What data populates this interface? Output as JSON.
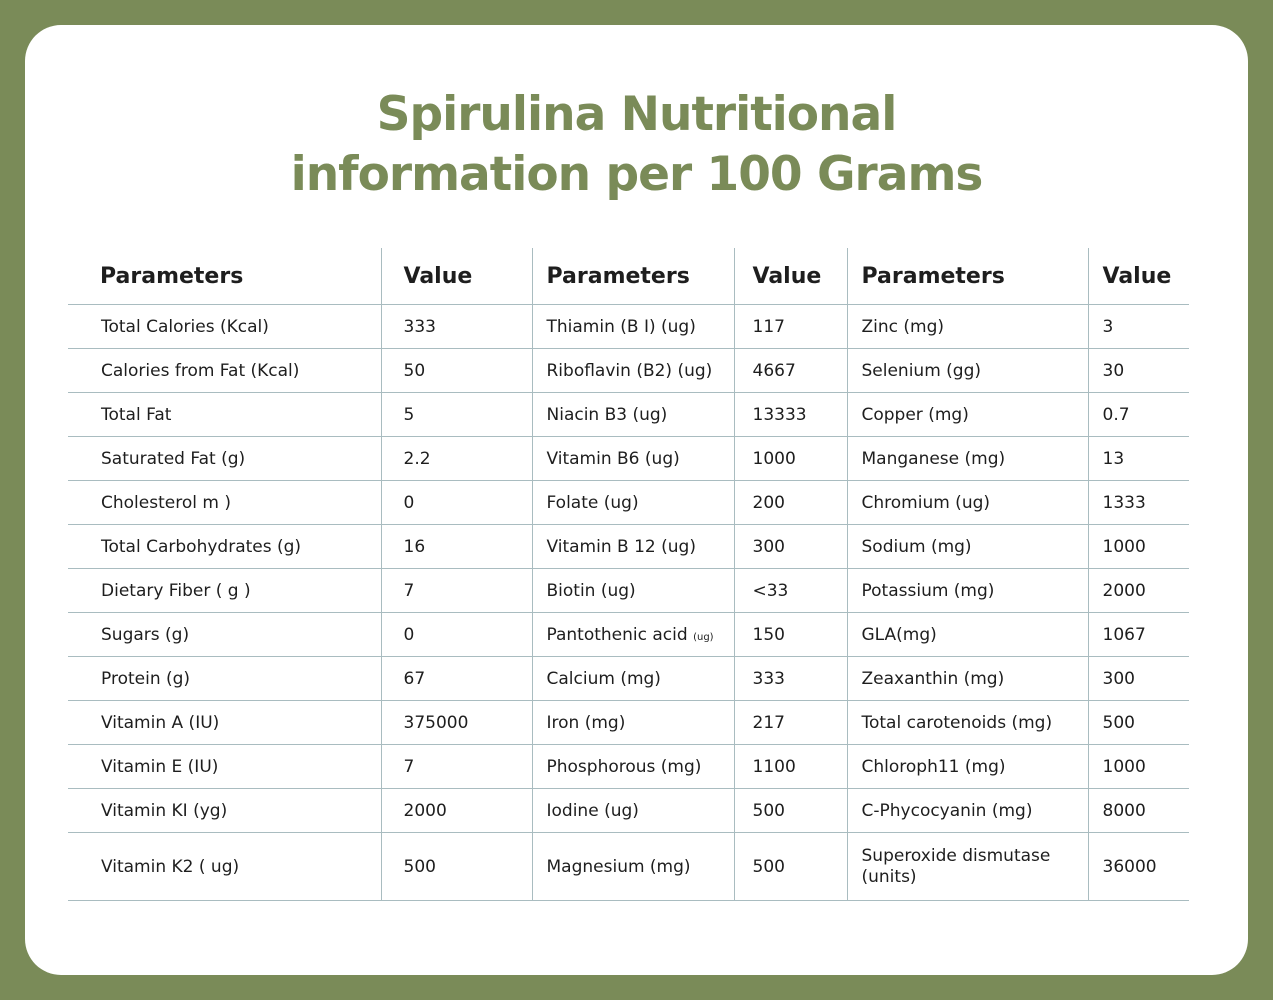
{
  "title": {
    "line1": "Spirulina Nutritional",
    "line2": "information per 100 Grams"
  },
  "headers": [
    "Parameters",
    "Value",
    "Parameters",
    "Value",
    "Parameters",
    "Value"
  ],
  "rows": [
    {
      "p1": "Total Calories (Kcal)",
      "v1": "333",
      "p2": "Thiamin (B I) (ug)",
      "v2": "117",
      "p3": "Zinc (mg)",
      "v3": "3"
    },
    {
      "p1": "Calories from Fat (Kcal)",
      "v1": "50",
      "p2": "Riboflavin (B2) (ug)",
      "v2": "4667",
      "p3": "Selenium (gg)",
      "v3": "30"
    },
    {
      "p1": "Total Fat",
      "v1": "5",
      "p2": "Niacin B3 (ug)",
      "v2": "13333",
      "p3": "Copper (mg)",
      "v3": "0.7"
    },
    {
      "p1": "Saturated Fat (g)",
      "v1": "2.2",
      "p2": "Vitamin B6 (ug)",
      "v2": "1000",
      "p3": "Manganese (mg)",
      "v3": "13"
    },
    {
      "p1": "Cholesterol m )",
      "v1": "0",
      "p2": "Folate (ug)",
      "v2": "200",
      "p3": "Chromium (ug)",
      "v3": "1333"
    },
    {
      "p1": "Total Carbohydrates (g)",
      "v1": "16",
      "p2": "Vitamin B 12 (ug)",
      "v2": "300",
      "p3": "Sodium (mg)",
      "v3": "1000"
    },
    {
      "p1": "Dietary Fiber ( g )",
      "v1": "7",
      "p2": "Biotin (ug)",
      "v2": "<33",
      "p3": "Potassium (mg)",
      "v3": "2000"
    },
    {
      "p1": "Sugars (g)",
      "v1": "0",
      "p2": "Pantothenic acid",
      "p2_unit": "(ug)",
      "v2": "150",
      "p3": "GLA(mg)",
      "v3": "1067"
    },
    {
      "p1": "Protein (g)",
      "v1": "67",
      "p2": "Calcium (mg)",
      "v2": "333",
      "p3": "Zeaxanthin (mg)",
      "v3": "300"
    },
    {
      "p1": "Vitamin A (IU)",
      "v1": "375000",
      "p2": "Iron (mg)",
      "v2": "217",
      "p3": "Total carotenoids (mg)",
      "v3": "500"
    },
    {
      "p1": "Vitamin E (IU)",
      "v1": "7",
      "p2": "Phosphorous (mg)",
      "v2": "1100",
      "p3": "Chloroph11 (mg)",
      "v3": "1000"
    },
    {
      "p1": "Vitamin KI (yg)",
      "v1": "2000",
      "p2": "Iodine (ug)",
      "v2": "500",
      "p3": "C-Phycocyanin (mg)",
      "v3": "8000"
    },
    {
      "p1": "Vitamin K2 ( ug)",
      "v1": "500",
      "p2": "Magnesium (mg)",
      "v2": "500",
      "p3": "Superoxide dismutase (units)",
      "v3": "36000"
    }
  ],
  "colors": {
    "accent": "#7a8b58",
    "rule": "#a9bcc0",
    "text": "#1e1e1e"
  }
}
